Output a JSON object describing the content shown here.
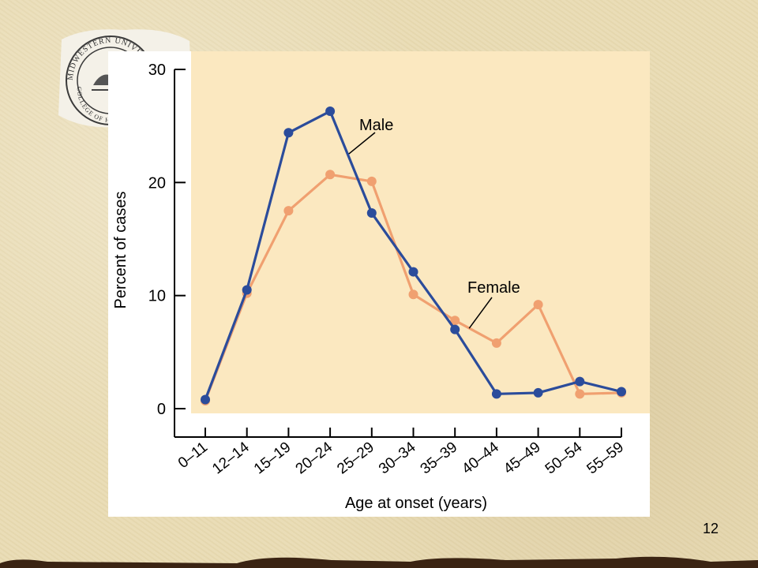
{
  "seal": {
    "ring_text": "MIDWESTERN UNIVERSITY",
    "inner_text": "COLLEGE OF H"
  },
  "chart_data": {
    "type": "line",
    "title": "",
    "xlabel": "Age at onset (years)",
    "ylabel": "Percent of cases",
    "categories": [
      "0–11",
      "12–14",
      "15–19",
      "20–24",
      "25–29",
      "30–34",
      "35–39",
      "40–44",
      "45–49",
      "50–54",
      "55–59"
    ],
    "yticks": [
      "0",
      "10",
      "20",
      "30"
    ],
    "ylim": [
      0,
      30
    ],
    "grid": false,
    "series": [
      {
        "name": "Male",
        "color": "#2b4c9b",
        "values": [
          0.8,
          10.5,
          24.4,
          26.3,
          17.3,
          12.1,
          7.0,
          1.3,
          1.4,
          2.4,
          1.5
        ]
      },
      {
        "name": "Female",
        "color": "#f0a070",
        "values": [
          0.7,
          10.2,
          17.5,
          20.7,
          20.1,
          10.1,
          7.8,
          5.8,
          9.2,
          1.3,
          1.4
        ]
      }
    ]
  },
  "colors": {
    "plot_background": "#fbe8c0",
    "axis": "#000000"
  },
  "slide_number": "12"
}
